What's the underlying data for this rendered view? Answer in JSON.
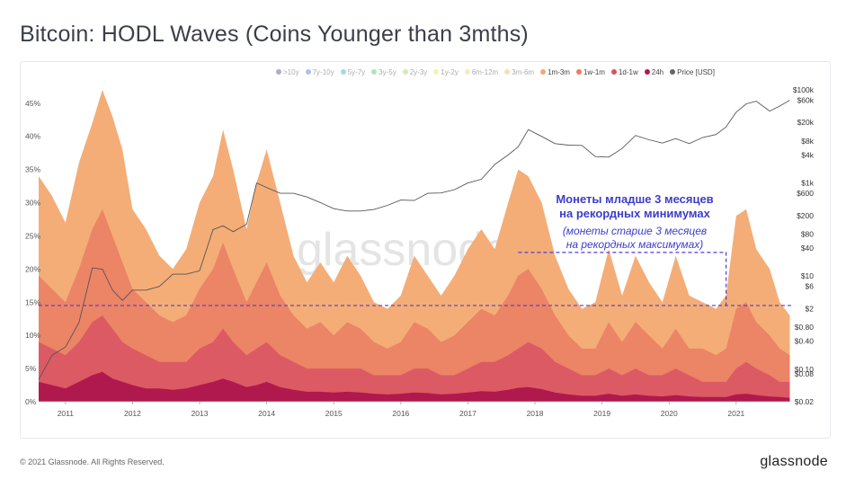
{
  "title": "Bitcoin: HODL Waves (Coins Younger than 3mths)",
  "footer": "© 2021 Glassnode. All Rights Reserved.",
  "brand": "glassnode",
  "watermark": "glassnode",
  "annotations": {
    "line1": "Монеты младше 3 месяцев",
    "line2": "на рекордных минимумах",
    "line3": "(монеты старше 3 месяцев",
    "line4": "на рекордных максимумах)"
  },
  "legend": [
    {
      "label": ">10y",
      "color": "#5b3fa0",
      "dim": true
    },
    {
      "label": "7y-10y",
      "color": "#4a78d0",
      "dim": true
    },
    {
      "label": "5y-7y",
      "color": "#2bb5b0",
      "dim": true
    },
    {
      "label": "3y-5y",
      "color": "#58c06a",
      "dim": true
    },
    {
      "label": "2y-3y",
      "color": "#9ed35a",
      "dim": true
    },
    {
      "label": "1y-2y",
      "color": "#e6e35a",
      "dim": true
    },
    {
      "label": "6m-12m",
      "color": "#f5cf6a",
      "dim": true
    },
    {
      "label": "3m-6m",
      "color": "#f6b26b",
      "dim": true
    },
    {
      "label": "1m-3m",
      "color": "#f4a871",
      "dim": false
    },
    {
      "label": "1w-1m",
      "color": "#ee7a5e",
      "dim": false
    },
    {
      "label": "1d-1w",
      "color": "#e0505a",
      "dim": false
    },
    {
      "label": "24h",
      "color": "#b5154a",
      "dim": false
    },
    {
      "label": "Price [USD]",
      "color": "#666666",
      "dim": false
    }
  ],
  "chart_data": {
    "type": "area",
    "title": "Bitcoin: HODL Waves (Coins Younger than 3mths)",
    "x": [
      2010.6,
      2010.8,
      2011.0,
      2011.2,
      2011.4,
      2011.55,
      2011.7,
      2011.85,
      2012.0,
      2012.2,
      2012.4,
      2012.6,
      2012.8,
      2013.0,
      2013.2,
      2013.35,
      2013.5,
      2013.7,
      2013.85,
      2014.0,
      2014.2,
      2014.4,
      2014.6,
      2014.8,
      2015.0,
      2015.2,
      2015.4,
      2015.6,
      2015.8,
      2016.0,
      2016.2,
      2016.4,
      2016.6,
      2016.8,
      2017.0,
      2017.2,
      2017.4,
      2017.6,
      2017.75,
      2017.9,
      2018.1,
      2018.3,
      2018.5,
      2018.7,
      2018.9,
      2019.1,
      2019.3,
      2019.5,
      2019.7,
      2019.9,
      2020.1,
      2020.3,
      2020.5,
      2020.7,
      2020.85,
      2021.0,
      2021.15,
      2021.3,
      2021.5,
      2021.65,
      2021.8
    ],
    "series": [
      {
        "name": "1m-3m",
        "values": [
          34,
          31,
          27,
          36,
          42,
          47,
          43,
          38,
          29,
          26,
          22,
          20,
          23,
          30,
          34,
          41,
          35,
          26,
          33,
          38,
          30,
          22,
          18,
          21,
          18,
          22,
          19,
          15,
          14,
          16,
          22,
          19,
          16,
          19,
          23,
          26,
          23,
          30,
          35,
          34,
          30,
          22,
          17,
          14,
          15,
          23,
          16,
          22,
          18,
          15,
          22,
          16,
          15,
          14,
          16,
          28,
          29,
          23,
          20,
          15,
          13
        ]
      },
      {
        "name": "1w-1m",
        "values": [
          19,
          17,
          15,
          20,
          26,
          29,
          25,
          21,
          17,
          15,
          13,
          12,
          13,
          17,
          20,
          24,
          20,
          15,
          18,
          21,
          16,
          13,
          11,
          12,
          10,
          12,
          11,
          9,
          8,
          9,
          12,
          11,
          9,
          10,
          12,
          14,
          13,
          16,
          19,
          20,
          17,
          13,
          10,
          8,
          8,
          12,
          9,
          12,
          10,
          8,
          11,
          8,
          8,
          7,
          8,
          14,
          15,
          12,
          10,
          8,
          7
        ]
      },
      {
        "name": "1d-1w",
        "values": [
          9,
          8,
          7,
          9,
          12,
          13,
          11,
          9,
          8,
          7,
          6,
          6,
          6,
          8,
          9,
          11,
          9,
          7,
          8,
          9,
          7,
          6,
          5,
          5,
          5,
          5,
          5,
          4,
          4,
          4,
          5,
          5,
          4,
          4,
          5,
          6,
          6,
          7,
          8,
          9,
          8,
          6,
          5,
          4,
          4,
          5,
          4,
          5,
          4,
          4,
          5,
          4,
          3,
          3,
          3,
          5,
          6,
          5,
          4,
          3,
          3
        ]
      },
      {
        "name": "24h",
        "values": [
          3,
          2.5,
          2,
          3,
          4,
          4.5,
          3.5,
          3,
          2.5,
          2,
          2,
          1.8,
          2,
          2.5,
          3,
          3.5,
          3,
          2.2,
          2.5,
          3,
          2.2,
          1.8,
          1.5,
          1.5,
          1.4,
          1.5,
          1.4,
          1.2,
          1.1,
          1.2,
          1.4,
          1.3,
          1.1,
          1.2,
          1.4,
          1.6,
          1.5,
          1.8,
          2.1,
          2.2,
          1.9,
          1.4,
          1.1,
          0.9,
          0.9,
          1.2,
          0.9,
          1.1,
          0.9,
          0.8,
          1.0,
          0.8,
          0.7,
          0.7,
          0.7,
          1.1,
          1.2,
          1.0,
          0.8,
          0.7,
          0.6
        ]
      },
      {
        "name": "Price [USD]",
        "values": [
          0.06,
          0.2,
          0.3,
          1,
          15,
          14,
          5,
          3,
          5,
          5,
          6,
          11,
          11,
          13,
          100,
          120,
          90,
          130,
          1000,
          800,
          600,
          600,
          500,
          380,
          280,
          250,
          250,
          270,
          330,
          430,
          420,
          600,
          610,
          720,
          1000,
          1200,
          2500,
          4000,
          6000,
          14000,
          10000,
          7000,
          6500,
          6400,
          3700,
          3600,
          5500,
          10500,
          8500,
          7200,
          9000,
          7000,
          9500,
          11000,
          16000,
          33000,
          50000,
          57000,
          35000,
          45000,
          60000
        ]
      }
    ],
    "ylabel": "",
    "xlabel": "",
    "ylim": [
      0,
      47
    ],
    "y_ticks": [
      "0%",
      "5%",
      "10%",
      "15%",
      "20%",
      "25%",
      "30%",
      "35%",
      "40%",
      "45%"
    ],
    "y2_ticks": [
      "$0.02",
      "$0.08",
      "$0.10",
      "$0.40",
      "$0.80",
      "$2",
      "$6",
      "$10",
      "$40",
      "$80",
      "$200",
      "$600",
      "$1k",
      "$4k",
      "$8k",
      "$20k",
      "$60k",
      "$100k"
    ],
    "x_ticks": [
      "2011",
      "2012",
      "2013",
      "2014",
      "2015",
      "2016",
      "2017",
      "2018",
      "2019",
      "2020",
      "2021"
    ],
    "reference_line_pct": 14.5,
    "y2_scale": "log",
    "grid": false,
    "legend_position": "top"
  }
}
